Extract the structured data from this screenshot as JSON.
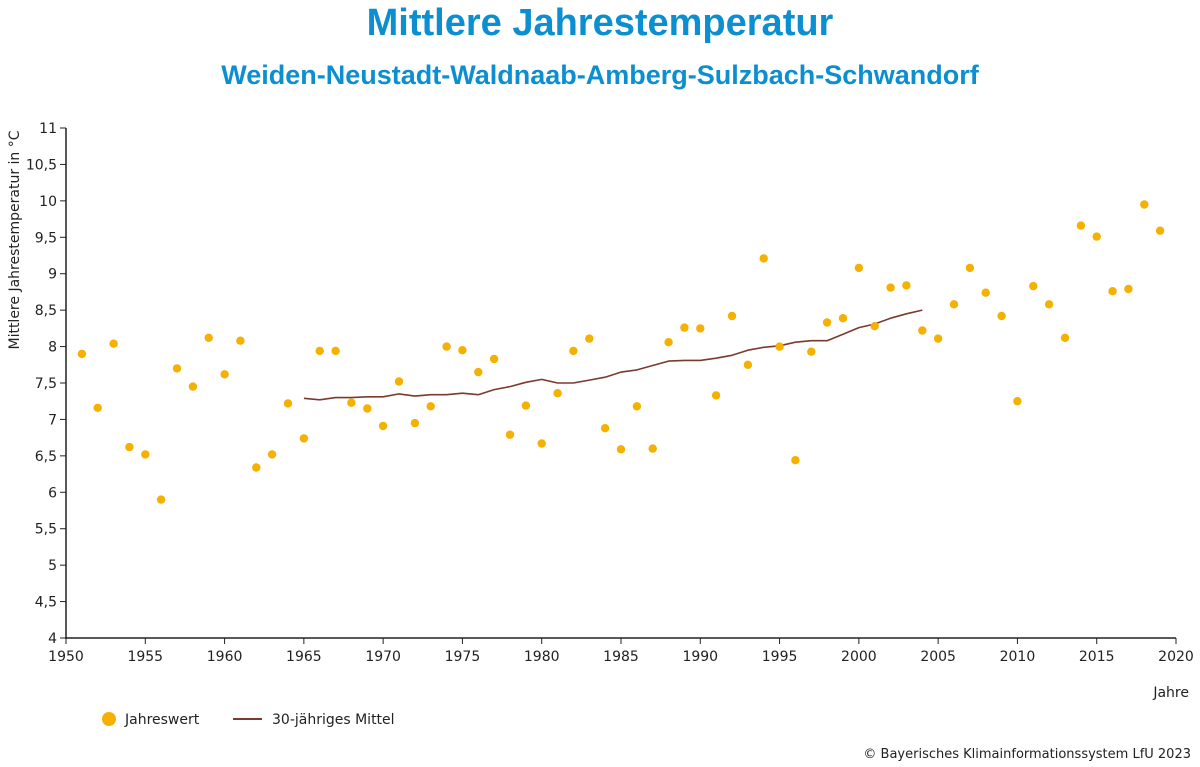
{
  "chart_data": {
    "type": "scatter",
    "title": "Mittlere Jahrestemperatur",
    "subtitle": "Weiden-Neustadt-Waldnaab-Amberg-Sulzbach-Schwandorf",
    "xlabel": "Jahre",
    "ylabel": "Mittlere Jahrestemperatur in °C",
    "xlim": [
      1950,
      2020
    ],
    "ylim": [
      4,
      11
    ],
    "x_ticks": [
      "1950",
      "1955",
      "1960",
      "1965",
      "1970",
      "1975",
      "1980",
      "1985",
      "1990",
      "1995",
      "2000",
      "2005",
      "2010",
      "2015",
      "2020"
    ],
    "y_ticks": [
      "4",
      "4,5",
      "5",
      "5,5",
      "6",
      "6,5",
      "7",
      "7,5",
      "8",
      "8,5",
      "9",
      "9,5",
      "10",
      "10,5",
      "11"
    ],
    "grid": false,
    "legend_position": "bottom-left",
    "series": [
      {
        "name": "Jahreswert",
        "kind": "points",
        "color": "#f5b000",
        "x": [
          1951,
          1952,
          1953,
          1954,
          1955,
          1956,
          1957,
          1958,
          1959,
          1960,
          1961,
          1962,
          1963,
          1964,
          1965,
          1966,
          1967,
          1968,
          1969,
          1970,
          1971,
          1972,
          1973,
          1974,
          1975,
          1976,
          1977,
          1978,
          1979,
          1980,
          1981,
          1982,
          1983,
          1984,
          1985,
          1986,
          1987,
          1988,
          1989,
          1990,
          1991,
          1992,
          1993,
          1994,
          1995,
          1996,
          1997,
          1998,
          1999,
          2000,
          2001,
          2002,
          2003,
          2004,
          2005,
          2006,
          2007,
          2008,
          2009,
          2010,
          2011,
          2012,
          2013,
          2014,
          2015,
          2016,
          2017,
          2018,
          2019
        ],
        "y": [
          7.9,
          7.16,
          8.04,
          6.62,
          6.52,
          5.9,
          7.7,
          7.45,
          8.12,
          7.62,
          8.08,
          6.34,
          6.52,
          7.22,
          6.74,
          7.94,
          7.94,
          7.23,
          7.15,
          6.91,
          7.52,
          6.95,
          7.18,
          8.0,
          7.95,
          7.65,
          7.83,
          6.79,
          7.19,
          6.67,
          7.36,
          7.94,
          8.11,
          6.88,
          6.59,
          7.18,
          6.6,
          8.06,
          8.26,
          8.25,
          7.33,
          8.42,
          7.75,
          9.21,
          8.0,
          6.44,
          7.93,
          8.33,
          8.39,
          9.08,
          8.28,
          8.81,
          8.84,
          8.22,
          8.11,
          8.58,
          9.08,
          8.74,
          8.42,
          7.25,
          8.83,
          8.58,
          8.12,
          9.66,
          9.51,
          8.76,
          8.79,
          9.95,
          9.59
        ]
      },
      {
        "name": "30-jähriges Mittel",
        "kind": "line",
        "color": "#7a3b2e",
        "x": [
          1965,
          1966,
          1967,
          1968,
          1969,
          1970,
          1971,
          1972,
          1973,
          1974,
          1975,
          1976,
          1977,
          1978,
          1979,
          1980,
          1981,
          1982,
          1983,
          1984,
          1985,
          1986,
          1987,
          1988,
          1989,
          1990,
          1991,
          1992,
          1993,
          1994,
          1995,
          1996,
          1997,
          1998,
          1999,
          2000,
          2001,
          2002,
          2003,
          2004
        ],
        "y": [
          7.29,
          7.27,
          7.3,
          7.3,
          7.31,
          7.31,
          7.35,
          7.32,
          7.34,
          7.34,
          7.36,
          7.34,
          7.41,
          7.45,
          7.51,
          7.55,
          7.5,
          7.5,
          7.54,
          7.58,
          7.65,
          7.68,
          7.74,
          7.8,
          7.81,
          7.81,
          7.84,
          7.88,
          7.95,
          7.99,
          8.01,
          8.06,
          8.08,
          8.08,
          8.17,
          8.26,
          8.31,
          8.39,
          8.45,
          8.5
        ]
      }
    ]
  },
  "legend": {
    "items": [
      {
        "label": "Jahreswert",
        "color": "#f5b000",
        "icon": "dot"
      },
      {
        "label": "30-jähriges Mittel",
        "color": "#7a3b2e",
        "icon": "line"
      }
    ]
  },
  "footer": {
    "copyright": "© Bayerisches Klimainformationssystem LfU 2023"
  }
}
